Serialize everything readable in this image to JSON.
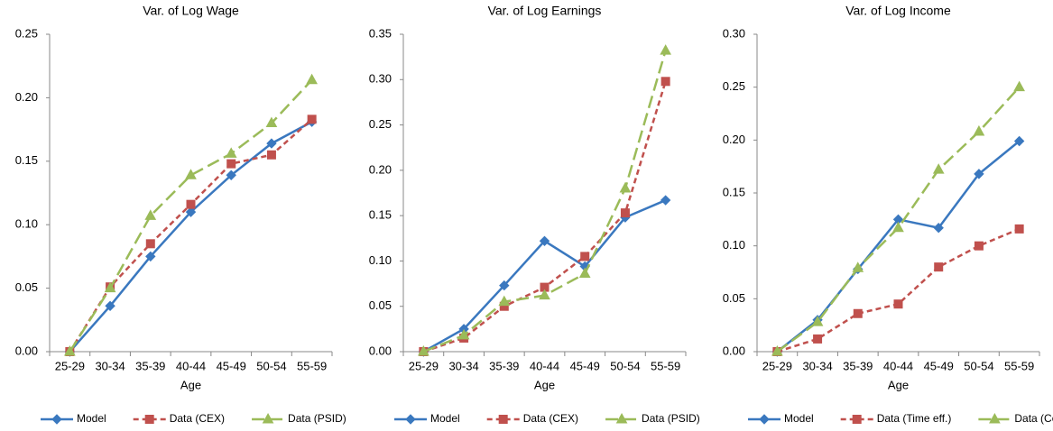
{
  "chart_data": [
    {
      "type": "line",
      "title": "Var. of Log Wage",
      "x_label": "Age",
      "categories": [
        "25-29",
        "30-34",
        "35-39",
        "40-44",
        "45-49",
        "50-54",
        "55-59"
      ],
      "ylim": [
        0,
        0.25
      ],
      "yticks": [
        {
          "value": 0,
          "label": "0.00"
        },
        {
          "value": 0.05,
          "label": "0.05"
        },
        {
          "value": 0.1,
          "label": "0.10"
        },
        {
          "value": 0.15,
          "label": "0.15"
        },
        {
          "value": 0.2,
          "label": "0.20"
        },
        {
          "value": 0.25,
          "label": "0.25"
        }
      ],
      "grid": false,
      "legend": "bottom",
      "series": [
        {
          "name": "Model",
          "color": "#3a78bf",
          "marker": "diamond",
          "dash": "solid",
          "values": [
            0,
            0.036,
            0.075,
            0.11,
            0.139,
            0.164,
            0.181
          ]
        },
        {
          "name": "Data (CEX)",
          "color": "#c0504d",
          "marker": "square",
          "dash": "dashed",
          "values": [
            0,
            0.051,
            0.085,
            0.116,
            0.148,
            0.155,
            0.183
          ]
        },
        {
          "name": "Data (PSID)",
          "color": "#9bbb59",
          "marker": "triangle",
          "dash": "long-dash",
          "values": [
            0,
            0.05,
            0.107,
            0.139,
            0.156,
            0.18,
            0.214
          ]
        }
      ]
    },
    {
      "type": "line",
      "title": "Var. of Log Earnings",
      "x_label": "Age",
      "categories": [
        "25-29",
        "30-34",
        "35-39",
        "40-44",
        "45-49",
        "50-54",
        "55-59"
      ],
      "ylim": [
        0,
        0.35
      ],
      "yticks": [
        {
          "value": 0,
          "label": "0.00"
        },
        {
          "value": 0.05,
          "label": "0.05"
        },
        {
          "value": 0.1,
          "label": "0.10"
        },
        {
          "value": 0.15,
          "label": "0.15"
        },
        {
          "value": 0.2,
          "label": "0.20"
        },
        {
          "value": 0.25,
          "label": "0.25"
        },
        {
          "value": 0.3,
          "label": "0.30"
        },
        {
          "value": 0.35,
          "label": "0.35"
        }
      ],
      "grid": false,
      "legend": "bottom",
      "series": [
        {
          "name": "Model",
          "color": "#3a78bf",
          "marker": "diamond",
          "dash": "solid",
          "values": [
            0,
            0.025,
            0.073,
            0.122,
            0.094,
            0.148,
            0.167
          ]
        },
        {
          "name": "Data (CEX)",
          "color": "#c0504d",
          "marker": "square",
          "dash": "dashed",
          "values": [
            0,
            0.015,
            0.05,
            0.071,
            0.105,
            0.153,
            0.298
          ]
        },
        {
          "name": "Data (PSID)",
          "color": "#9bbb59",
          "marker": "triangle",
          "dash": "long-dash",
          "values": [
            0,
            0.018,
            0.055,
            0.062,
            0.086,
            0.18,
            0.332
          ]
        }
      ]
    },
    {
      "type": "line",
      "title": "Var. of Log Income",
      "x_label": "Age",
      "categories": [
        "25-29",
        "30-34",
        "35-39",
        "40-44",
        "45-49",
        "50-54",
        "55-59"
      ],
      "ylim": [
        0,
        0.3
      ],
      "yticks": [
        {
          "value": 0,
          "label": "0.00"
        },
        {
          "value": 0.05,
          "label": "0.05"
        },
        {
          "value": 0.1,
          "label": "0.10"
        },
        {
          "value": 0.15,
          "label": "0.15"
        },
        {
          "value": 0.2,
          "label": "0.20"
        },
        {
          "value": 0.25,
          "label": "0.25"
        },
        {
          "value": 0.3,
          "label": "0.30"
        }
      ],
      "grid": false,
      "legend": "bottom",
      "series": [
        {
          "name": "Model",
          "color": "#3a78bf",
          "marker": "diamond",
          "dash": "solid",
          "values": [
            0,
            0.03,
            0.078,
            0.125,
            0.117,
            0.168,
            0.199
          ]
        },
        {
          "name": "Data (Time eff.)",
          "color": "#c0504d",
          "marker": "square",
          "dash": "dashed",
          "values": [
            0,
            0.012,
            0.036,
            0.045,
            0.08,
            0.1,
            0.116
          ]
        },
        {
          "name": "Data (Cohort eff.)",
          "color": "#9bbb59",
          "marker": "triangle",
          "dash": "long-dash",
          "values": [
            0,
            0.028,
            0.079,
            0.117,
            0.172,
            0.208,
            0.25
          ]
        }
      ]
    }
  ]
}
